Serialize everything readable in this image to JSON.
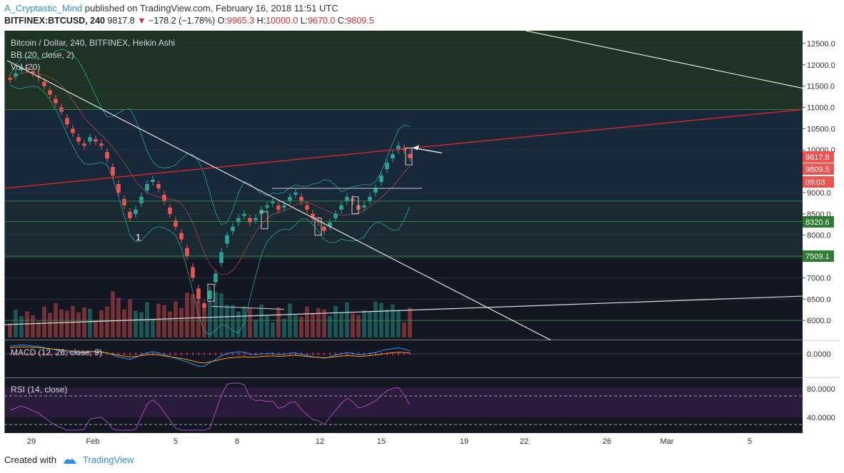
{
  "header": {
    "author": "A_Cryptastic_Mind",
    "published_text": "published on TradingView.com, February 16, 2018 11:51 UTC",
    "symbol": "BITFINEX:BTCUSD, 240",
    "last_price": "9817.8",
    "change_text": "−178.2 (−1.78%)",
    "open_label": "O:",
    "open_value": "9965.3",
    "high_label": "H:",
    "high_value": "10000.0",
    "low_label": "L:",
    "low_value": "9670.0",
    "close_label": "C:",
    "close_value": "9809.5"
  },
  "legend": {
    "title": "Bitcoin / Dollar, 240, BITFINEX, Heikin Ashi",
    "bb": "BB (20, close, 2)",
    "vol": "Vol (20)",
    "macd": "MACD (12, 26, close, 9)",
    "rsi": "RSI (14, close)"
  },
  "annotation_1": "1",
  "footer": {
    "created_with": "Created with",
    "brand": "TradingView"
  },
  "colors": {
    "up": "#26a69a",
    "down": "#ef5350",
    "background": "#131722",
    "trendline_red": "#c62828"
  },
  "price_tags": [
    {
      "value": "9817.8",
      "color": "#ef5350"
    },
    {
      "value": "9809.5",
      "color": "#ef5350"
    },
    {
      "value": "09:03",
      "color": "#ef5350"
    },
    {
      "value": "8320.6",
      "color": "#2e7d32"
    },
    {
      "value": "7509.1",
      "color": "#2e7d32"
    }
  ],
  "chart_data": [
    {
      "type": "candlestick",
      "style": "Heikin Ashi",
      "title": "Bitcoin / Dollar, 240, BITFINEX, Heikin Ashi",
      "x_tick_labels": [
        "29",
        "Feb",
        "5",
        "8",
        "12",
        "15",
        "19",
        "22",
        "26",
        "Mar",
        "5"
      ],
      "y_tick_labels": [
        "12500.0",
        "12000.0",
        "11500.0",
        "11000.0",
        "10500.0",
        "10000.0",
        "9000.0",
        "8500.0",
        "8000.0",
        "7000.0",
        "6500.0",
        "6000.0"
      ],
      "ylim": [
        5600,
        12800
      ],
      "close_series": [
        11650,
        11800,
        11950,
        11900,
        11800,
        11700,
        11500,
        11300,
        11100,
        10900,
        10600,
        10400,
        10200,
        10100,
        10300,
        10200,
        10100,
        9800,
        9400,
        9000,
        8700,
        8400,
        8600,
        8900,
        9200,
        9300,
        9100,
        8800,
        8500,
        8200,
        7900,
        7500,
        7000,
        6500,
        6300,
        6700,
        7100,
        7600,
        8000,
        8200,
        8400,
        8500,
        8300,
        8400,
        8600,
        8700,
        8800,
        8600,
        8700,
        8900,
        9000,
        8800,
        8600,
        8400,
        8300,
        8100,
        8300,
        8500,
        8700,
        8900,
        8800,
        8600,
        8700,
        8900,
        9100,
        9400,
        9700,
        9900,
        10100,
        10000,
        9810
      ],
      "last": {
        "open": 9965.3,
        "high": 10000.0,
        "low": 9670.0,
        "close": 9809.5
      },
      "horizontal_levels": [
        10950,
        8800,
        8320.6,
        7509.1,
        6000
      ],
      "series": [
        {
          "name": "BB (20, close, 2)"
        },
        {
          "name": "Vol (20)"
        }
      ]
    },
    {
      "type": "line",
      "title": "MACD (12, 26, close, 9)",
      "y_tick_labels": [
        "0.0000"
      ],
      "ylim": [
        -1,
        1
      ]
    },
    {
      "type": "line",
      "title": "RSI (14, close)",
      "y_tick_labels": [
        "80.0000",
        "40.0000"
      ],
      "ylim": [
        20,
        90
      ],
      "bands": [
        70,
        30
      ]
    }
  ]
}
